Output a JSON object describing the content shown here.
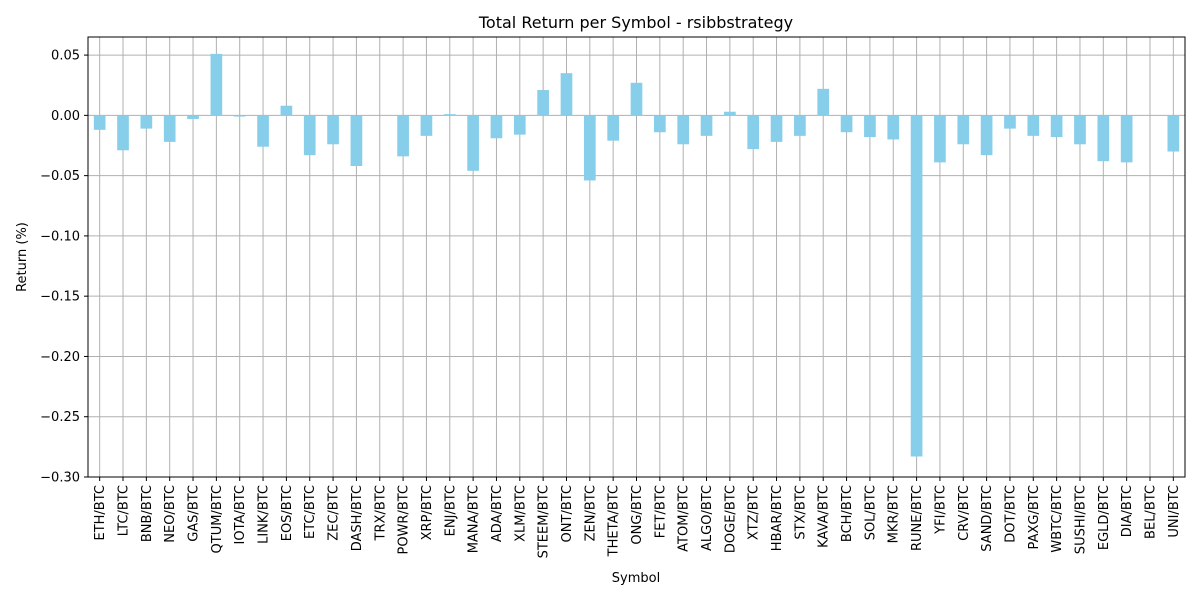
{
  "chart_data": {
    "type": "bar",
    "title": "Total Return per Symbol - rsibbstrategy",
    "xlabel": "Symbol",
    "ylabel": "Return (%)",
    "ylim": [
      -0.3,
      0.065
    ],
    "yticks": [
      0.05,
      0.0,
      -0.05,
      -0.1,
      -0.15,
      -0.2,
      -0.25,
      -0.3
    ],
    "ytick_labels": [
      "0.05",
      "0.00",
      "−0.05",
      "−0.10",
      "−0.15",
      "−0.20",
      "−0.25",
      "−0.30"
    ],
    "grid": true,
    "color": "#87ceeb",
    "categories": [
      "ETH/BTC",
      "LTC/BTC",
      "BNB/BTC",
      "NEO/BTC",
      "GAS/BTC",
      "QTUM/BTC",
      "IOTA/BTC",
      "LINK/BTC",
      "EOS/BTC",
      "ETC/BTC",
      "ZEC/BTC",
      "DASH/BTC",
      "TRX/BTC",
      "POWR/BTC",
      "XRP/BTC",
      "ENJ/BTC",
      "MANA/BTC",
      "ADA/BTC",
      "XLM/BTC",
      "STEEM/BTC",
      "ONT/BTC",
      "ZEN/BTC",
      "THETA/BTC",
      "ONG/BTC",
      "FET/BTC",
      "ATOM/BTC",
      "ALGO/BTC",
      "DOGE/BTC",
      "XTZ/BTC",
      "HBAR/BTC",
      "STX/BTC",
      "KAVA/BTC",
      "BCH/BTC",
      "SOL/BTC",
      "MKR/BTC",
      "RUNE/BTC",
      "YFI/BTC",
      "CRV/BTC",
      "SAND/BTC",
      "DOT/BTC",
      "PAXG/BTC",
      "WBTC/BTC",
      "SUSHI/BTC",
      "EGLD/BTC",
      "DIA/BTC",
      "BEL/BTC",
      "UNI/BTC"
    ],
    "values": [
      -0.012,
      -0.029,
      -0.011,
      -0.022,
      -0.003,
      0.051,
      -0.001,
      -0.026,
      0.008,
      -0.033,
      -0.024,
      -0.042,
      0.0,
      -0.034,
      -0.017,
      0.001,
      -0.046,
      -0.019,
      -0.016,
      0.021,
      0.035,
      -0.054,
      -0.021,
      0.027,
      -0.014,
      -0.024,
      -0.017,
      0.003,
      -0.028,
      -0.022,
      -0.017,
      0.022,
      -0.014,
      -0.018,
      -0.02,
      -0.283,
      -0.039,
      -0.024,
      -0.033,
      -0.011,
      -0.017,
      -0.018,
      -0.024,
      -0.038,
      -0.039,
      0.0,
      -0.03
    ]
  }
}
